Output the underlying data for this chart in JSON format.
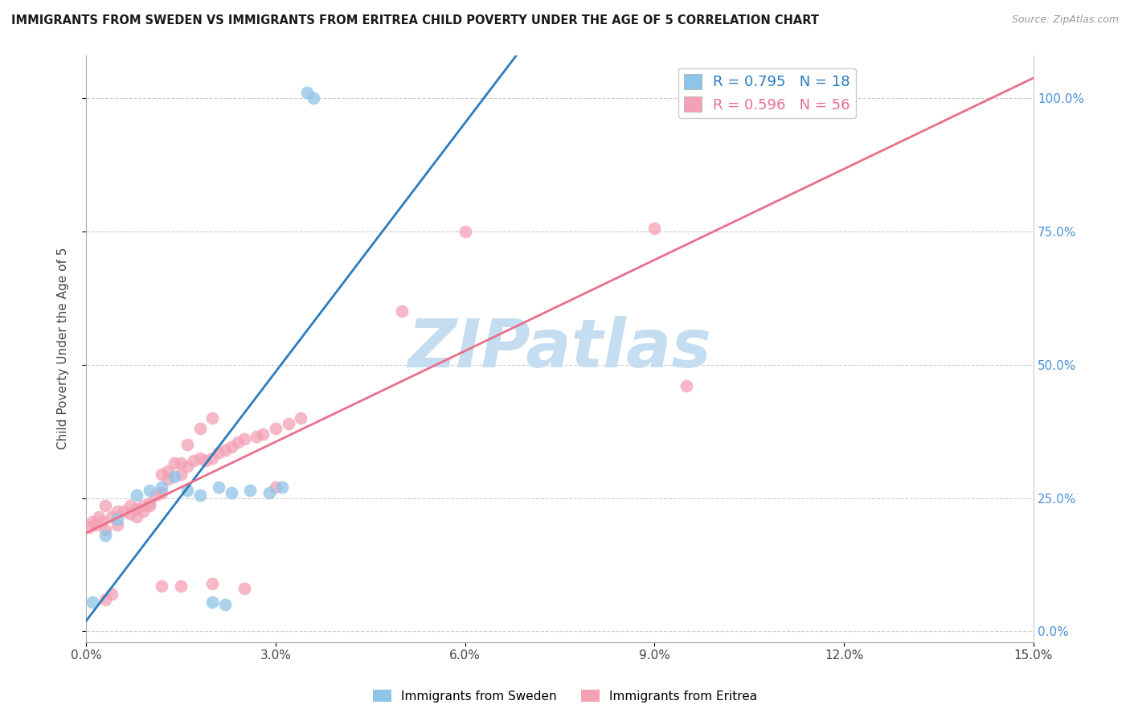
{
  "title": "IMMIGRANTS FROM SWEDEN VS IMMIGRANTS FROM ERITREA CHILD POVERTY UNDER THE AGE OF 5 CORRELATION CHART",
  "source": "Source: ZipAtlas.com",
  "ylabel": "Child Poverty Under the Age of 5",
  "legend_labels": [
    "Immigrants from Sweden",
    "Immigrants from Eritrea"
  ],
  "legend_r_n": [
    [
      "R = 0.795",
      "N = 18"
    ],
    [
      "R = 0.596",
      "N = 56"
    ]
  ],
  "xlim": [
    0.0,
    0.15
  ],
  "ylim": [
    -0.02,
    1.08
  ],
  "yticks": [
    0.0,
    0.25,
    0.5,
    0.75,
    1.0
  ],
  "ytick_labels_right": [
    "0.0%",
    "25.0%",
    "50.0%",
    "75.0%",
    "100.0%"
  ],
  "xticks": [
    0.0,
    0.03,
    0.06,
    0.09,
    0.12,
    0.15
  ],
  "xtick_labels": [
    "0.0%",
    "3.0%",
    "6.0%",
    "9.0%",
    "12.0%",
    "15.0%"
  ],
  "color_sweden": "#8ec4e8",
  "color_eritrea": "#f4a0b5",
  "trendline_sweden": "#2b7bbd",
  "trendline_eritrea": "#e8708a",
  "watermark": "ZIPatlas",
  "watermark_color": "#c5ddf0",
  "background_color": "#ffffff",
  "sweden_x": [
    0.035,
    0.036,
    0.005,
    0.008,
    0.01,
    0.012,
    0.014,
    0.016,
    0.018,
    0.021,
    0.023,
    0.026,
    0.029,
    0.031,
    0.02,
    0.022,
    0.003,
    0.001
  ],
  "sweden_y": [
    1.01,
    1.0,
    0.21,
    0.255,
    0.265,
    0.27,
    0.29,
    0.265,
    0.255,
    0.27,
    0.26,
    0.265,
    0.26,
    0.27,
    0.055,
    0.05,
    0.18,
    0.055
  ],
  "eritrea_x": [
    0.0005,
    0.001,
    0.0015,
    0.002,
    0.0025,
    0.003,
    0.003,
    0.004,
    0.005,
    0.005,
    0.006,
    0.007,
    0.007,
    0.008,
    0.008,
    0.009,
    0.009,
    0.01,
    0.01,
    0.011,
    0.012,
    0.012,
    0.013,
    0.013,
    0.014,
    0.015,
    0.015,
    0.016,
    0.017,
    0.018,
    0.019,
    0.02,
    0.021,
    0.022,
    0.023,
    0.024,
    0.025,
    0.027,
    0.028,
    0.03,
    0.032,
    0.034,
    0.05,
    0.06,
    0.09,
    0.095,
    0.03,
    0.016,
    0.018,
    0.02,
    0.003,
    0.004,
    0.012,
    0.015,
    0.02,
    0.025
  ],
  "eritrea_y": [
    0.195,
    0.205,
    0.2,
    0.215,
    0.205,
    0.19,
    0.235,
    0.215,
    0.225,
    0.2,
    0.225,
    0.22,
    0.235,
    0.23,
    0.215,
    0.235,
    0.225,
    0.235,
    0.24,
    0.255,
    0.26,
    0.295,
    0.285,
    0.3,
    0.315,
    0.315,
    0.295,
    0.31,
    0.32,
    0.325,
    0.32,
    0.325,
    0.335,
    0.34,
    0.345,
    0.355,
    0.36,
    0.365,
    0.37,
    0.38,
    0.39,
    0.4,
    0.6,
    0.75,
    0.755,
    0.46,
    0.27,
    0.35,
    0.38,
    0.4,
    0.06,
    0.07,
    0.085,
    0.085,
    0.09,
    0.08
  ],
  "trendline_sweden_params": [
    28.5,
    -0.32
  ],
  "trendline_eritrea_params": [
    5.5,
    0.12
  ]
}
